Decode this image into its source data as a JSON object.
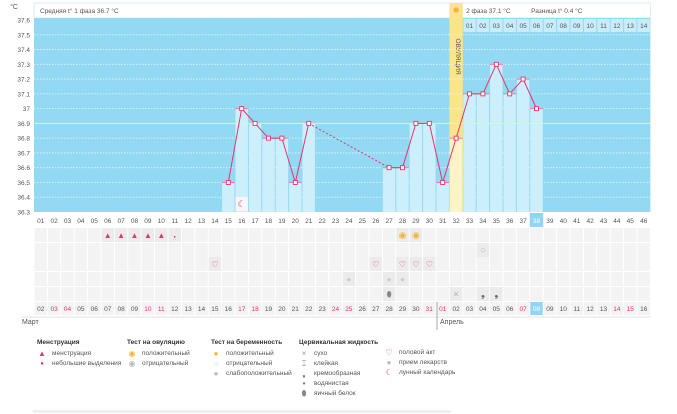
{
  "header": {
    "unit": "°C",
    "phase1": "Средняя t° 1 фаза 36.7 °C",
    "phase2": "2 фаза 37.1 °C",
    "diff": "Разница t° 0.4 °C",
    "ovulation_label": "ОВУЛЯЦИЯ"
  },
  "chart_data": {
    "type": "line",
    "title": "",
    "ylabel": "°C",
    "xlabel": "cycle day",
    "ylim": [
      36.3,
      37.6
    ],
    "y_ticks": [
      "37.6",
      "37.5",
      "37.4",
      "37.3",
      "37.2",
      "37.1",
      "37",
      "36.9",
      "36.8",
      "36.7",
      "36.6",
      "36.5",
      "36.4",
      "36.3"
    ],
    "cycle_days": [
      "01",
      "02",
      "03",
      "04",
      "05",
      "06",
      "07",
      "08",
      "09",
      "10",
      "11",
      "12",
      "13",
      "14",
      "15",
      "16",
      "17",
      "18",
      "19",
      "20",
      "21",
      "22",
      "23",
      "24",
      "25",
      "26",
      "27",
      "28",
      "29",
      "30",
      "31",
      "32",
      "33",
      "34",
      "35",
      "36",
      "37",
      "38",
      "39",
      "40",
      "41",
      "42",
      "43",
      "44",
      "45",
      "46"
    ],
    "temperatures": [
      null,
      null,
      null,
      null,
      null,
      null,
      null,
      null,
      null,
      null,
      null,
      null,
      null,
      null,
      36.5,
      37.0,
      36.9,
      36.8,
      36.8,
      36.5,
      36.9,
      null,
      null,
      null,
      null,
      null,
      36.6,
      36.6,
      36.9,
      36.9,
      36.5,
      36.8,
      37.1,
      37.1,
      37.3,
      37.1,
      37.2,
      37.0,
      null,
      null,
      null,
      null,
      null,
      null,
      null,
      null
    ],
    "coverline": 36.9,
    "ovulation_day": 32,
    "current_day": 38,
    "phase2_day_labels": [
      "01",
      "02",
      "03",
      "04",
      "05",
      "06",
      "07",
      "08",
      "09",
      "10",
      "11",
      "12",
      "13",
      "14"
    ],
    "grid": true
  },
  "dates": [
    "02",
    "03",
    "04",
    "05",
    "06",
    "07",
    "08",
    "09",
    "10",
    "11",
    "12",
    "13",
    "14",
    "15",
    "16",
    "17",
    "18",
    "19",
    "20",
    "21",
    "22",
    "23",
    "24",
    "25",
    "26",
    "27",
    "28",
    "29",
    "30",
    "31",
    "01",
    "02",
    "03",
    "04",
    "05",
    "06",
    "07",
    "08",
    "09",
    "10",
    "11",
    "12",
    "13",
    "14",
    "15",
    "16"
  ],
  "weekend_days": [
    1,
    2,
    8,
    9,
    15,
    16,
    22,
    23,
    29,
    30,
    36,
    37,
    43,
    44
  ],
  "months": {
    "march": "Март",
    "april": "Апрель"
  },
  "colors": {
    "plot": "#93d9f3",
    "bar": "#cdeffc",
    "line": "#e8336b",
    "ovulation": "#fbe58a",
    "weekend": "#e8336b",
    "current": "#8fd6f2"
  },
  "markers": [
    {
      "row": 0,
      "day": 6,
      "icon": "menstruation"
    },
    {
      "row": 0,
      "day": 7,
      "icon": "menstruation"
    },
    {
      "row": 0,
      "day": 8,
      "icon": "menstruation"
    },
    {
      "row": 0,
      "day": 9,
      "icon": "menstruation"
    },
    {
      "row": 0,
      "day": 10,
      "icon": "menstruation"
    },
    {
      "row": 0,
      "day": 11,
      "icon": "spotting"
    },
    {
      "row": 0,
      "day": 28,
      "icon": "ovulation-test-positive"
    },
    {
      "row": 0,
      "day": 29,
      "icon": "ovulation-test-positive"
    },
    {
      "row": 1,
      "day": 34,
      "icon": "pregnancy-test-negative"
    },
    {
      "row": 2,
      "day": 14,
      "icon": "intercourse"
    },
    {
      "row": 2,
      "day": 26,
      "icon": "intercourse"
    },
    {
      "row": 2,
      "day": 28,
      "icon": "intercourse"
    },
    {
      "row": 2,
      "day": 29,
      "icon": "intercourse"
    },
    {
      "row": 2,
      "day": 30,
      "icon": "intercourse"
    },
    {
      "row": 3,
      "day": 24,
      "icon": "medication"
    },
    {
      "row": 3,
      "day": 27,
      "icon": "medication"
    },
    {
      "row": 3,
      "day": 28,
      "icon": "medication"
    },
    {
      "row": 4,
      "day": 27,
      "icon": "egg-white"
    },
    {
      "row": 4,
      "day": 32,
      "icon": "dry"
    },
    {
      "row": 4,
      "day": 34,
      "icon": "creamy"
    },
    {
      "row": 4,
      "day": 35,
      "icon": "creamy"
    }
  ],
  "moon_day": 16,
  "legend": {
    "menstruation": {
      "title": "Менструация",
      "items": [
        "менструация",
        "небольшие выделения"
      ]
    },
    "ovulation_test": {
      "title": "Тест на овуляцию",
      "items": [
        "положительный",
        "отрицательный"
      ]
    },
    "pregnancy_test": {
      "title": "Тест на беременность",
      "items": [
        "положительный",
        "отрицательный",
        "слабоположительный"
      ]
    },
    "cervical": {
      "title": "Цервикальная жидкость",
      "items": [
        "сухо",
        "клейкая",
        "кремообразная",
        "водянистая",
        "яичный белок"
      ]
    },
    "other": {
      "items": [
        "половой акт",
        "прием лекарств",
        "лунный календарь"
      ]
    }
  }
}
